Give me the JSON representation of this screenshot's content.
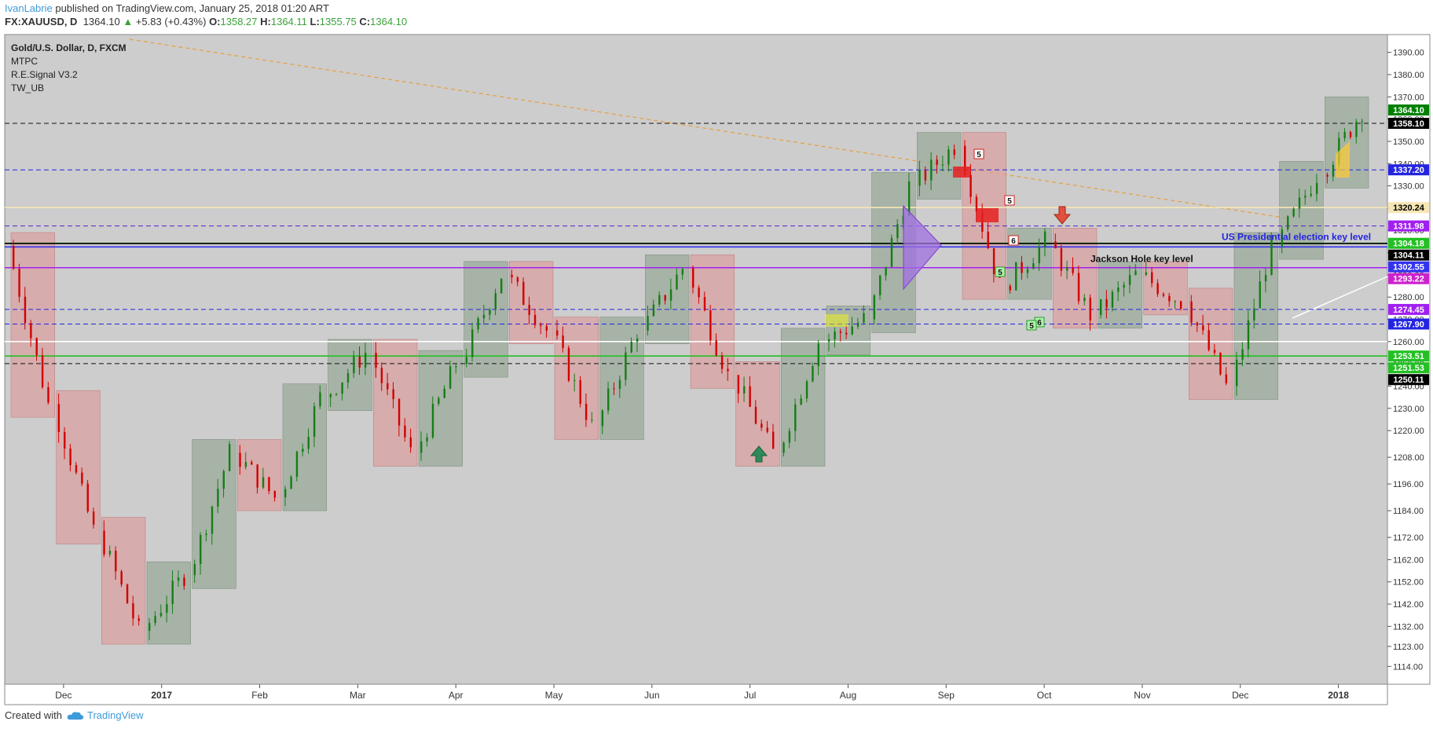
{
  "header": {
    "author": "IvanLabrie",
    "published": "published on TradingView.com, January 25, 2018 01:20 ART",
    "symbol": "FX:XAUUSD, D",
    "last": "1364.10",
    "change": "+5.83 (+0.43%)",
    "o_label": "O:",
    "o": "1358.27",
    "h_label": "H:",
    "h": "1364.11",
    "l_label": "L:",
    "l": "1355.75",
    "c_label": "C:",
    "c": "1364.10"
  },
  "legend": {
    "title": "Gold/U.S. Dollar, D, FXCM",
    "indicators": [
      "MTPC",
      "R.E.Signal V3.2",
      "TW_UB"
    ]
  },
  "footer": {
    "created": "Created with",
    "brand": "TradingView"
  },
  "colors": {
    "up": "#167d16",
    "down": "#d10000",
    "background": "#cdcdcd",
    "upBox": "#9aaa9a",
    "downBox": "#d9a0a0"
  },
  "chart_data": {
    "type": "candlestick",
    "symbol": "FX:XAUUSD",
    "interval": "D",
    "ylim": [
      1106,
      1398
    ],
    "y_ticks": [
      1114,
      1123,
      1132,
      1142,
      1152,
      1162,
      1172,
      1184,
      1196,
      1208,
      1220,
      1230,
      1240,
      1250,
      1260,
      1270,
      1280,
      1290,
      1300,
      1310,
      1320,
      1330,
      1340,
      1350,
      1360,
      1370,
      1380,
      1390
    ],
    "x_ticks": [
      "Dec",
      "2017",
      "Feb",
      "Mar",
      "Apr",
      "May",
      "Jun",
      "Jul",
      "Aug",
      "Sep",
      "Oct",
      "Nov",
      "Dec",
      "2018"
    ],
    "series": [
      {
        "start": "Nov",
        "end": "Dec",
        "o": 1303,
        "c": 1232
      },
      {
        "start": "Dec",
        "end": "Dec",
        "o": 1232,
        "c": 1175
      },
      {
        "start": "Dec",
        "end": "Dec",
        "o": 1175,
        "c": 1130
      },
      {
        "start": "Dec",
        "end": "2017",
        "o": 1130,
        "c": 1155
      },
      {
        "start": "2017",
        "end": "2017",
        "o": 1155,
        "c": 1210
      },
      {
        "start": "2017",
        "end": "Feb",
        "o": 1210,
        "c": 1190
      },
      {
        "start": "Feb",
        "end": "Feb",
        "o": 1190,
        "c": 1235
      },
      {
        "start": "Feb",
        "end": "Mar",
        "o": 1235,
        "c": 1255
      },
      {
        "start": "Mar",
        "end": "Mar",
        "o": 1255,
        "c": 1210
      },
      {
        "start": "Mar",
        "end": "Apr",
        "o": 1210,
        "c": 1250
      },
      {
        "start": "Apr",
        "end": "Apr",
        "o": 1250,
        "c": 1290
      },
      {
        "start": "Apr",
        "end": "May",
        "o": 1290,
        "c": 1265
      },
      {
        "start": "May",
        "end": "May",
        "o": 1265,
        "c": 1222
      },
      {
        "start": "May",
        "end": "Jun",
        "o": 1222,
        "c": 1265
      },
      {
        "start": "Jun",
        "end": "Jun",
        "o": 1265,
        "c": 1293
      },
      {
        "start": "Jun",
        "end": "Jul",
        "o": 1293,
        "c": 1245
      },
      {
        "start": "Jul",
        "end": "Jul",
        "o": 1245,
        "c": 1210
      },
      {
        "start": "Jul",
        "end": "Aug",
        "o": 1210,
        "c": 1260
      },
      {
        "start": "Aug",
        "end": "Aug",
        "o": 1260,
        "c": 1270
      },
      {
        "start": "Aug",
        "end": "Sep",
        "o": 1270,
        "c": 1330
      },
      {
        "start": "Sep",
        "end": "Sep",
        "o": 1330,
        "c": 1348
      },
      {
        "start": "Sep",
        "end": "Oct",
        "o": 1348,
        "c": 1285
      },
      {
        "start": "Oct",
        "end": "Oct",
        "o": 1285,
        "c": 1305
      },
      {
        "start": "Oct",
        "end": "Nov",
        "o": 1305,
        "c": 1272
      },
      {
        "start": "Nov",
        "end": "Nov",
        "o": 1272,
        "c": 1290
      },
      {
        "start": "Nov",
        "end": "Dec",
        "o": 1290,
        "c": 1278
      },
      {
        "start": "Dec",
        "end": "Dec",
        "o": 1278,
        "c": 1240
      },
      {
        "start": "Dec",
        "end": "2018",
        "o": 1240,
        "c": 1303
      },
      {
        "start": "2018",
        "end": "2018",
        "o": 1303,
        "c": 1335
      },
      {
        "start": "2018",
        "end": "2018",
        "o": 1335,
        "c": 1364
      }
    ],
    "price_labels": [
      {
        "value": 1364.1,
        "text": "1364.10",
        "color": "#008000"
      },
      {
        "value": 1358.1,
        "text": "1358.10",
        "color": "#000000"
      },
      {
        "value": 1337.2,
        "text": "1337.20",
        "color": "#2424e0"
      },
      {
        "value": 1320.24,
        "text": "1320.24",
        "color": "#f5e6b4",
        "textColor": "#000000"
      },
      {
        "value": 1311.98,
        "text": "1311.98",
        "color": "#a020f0"
      },
      {
        "value": 1304.18,
        "text": "1304.18",
        "color": "#22c022"
      },
      {
        "value": 1304.11,
        "text": "1304.11",
        "color": "#000000"
      },
      {
        "value": 1302.55,
        "text": "1302.55",
        "color": "#3333ee"
      },
      {
        "value": 1293.22,
        "text": "1293.22",
        "color": "#cc22cc"
      },
      {
        "value": 1274.45,
        "text": "1274.45",
        "color": "#a020f0"
      },
      {
        "value": 1267.9,
        "text": "1267.90",
        "color": "#2424e0"
      },
      {
        "value": 1253.51,
        "text": "1253.51",
        "color": "#22c022"
      },
      {
        "value": 1251.53,
        "text": "1251.53",
        "color": "#22c022"
      },
      {
        "value": 1250.11,
        "text": "1250.11",
        "color": "#000000"
      }
    ],
    "lines": [
      {
        "value": 1358.1,
        "color": "#111111",
        "dash": true
      },
      {
        "value": 1337.2,
        "color": "#2424e0",
        "dash": true
      },
      {
        "value": 1320.24,
        "color": "#f5e6b4",
        "dash": false
      },
      {
        "value": 1311.98,
        "color": "#5522cc",
        "dash": true
      },
      {
        "value": 1304.18,
        "color": "#22c022",
        "dash": false
      },
      {
        "value": 1304.11,
        "color": "#000000",
        "dash": false
      },
      {
        "value": 1302.55,
        "color": "#3333ee",
        "dash": false
      },
      {
        "value": 1293.22,
        "color": "#a020f0",
        "dash": false
      },
      {
        "value": 1274.45,
        "color": "#2424e0",
        "dash": true
      },
      {
        "value": 1267.9,
        "color": "#2424e0",
        "dash": true
      },
      {
        "value": 1260.0,
        "color": "#ffffff",
        "dash": false
      },
      {
        "value": 1253.51,
        "color": "#22c022",
        "dash": false
      },
      {
        "value": 1250.11,
        "color": "#111111",
        "dash": true
      }
    ],
    "annotations": [
      {
        "text": "US Presidential election key level",
        "value": 1305
      },
      {
        "text": "Jackson Hole key level",
        "value": 1295
      }
    ],
    "signal_labels": [
      "5",
      "5",
      "6",
      "5",
      "6",
      "5"
    ]
  }
}
